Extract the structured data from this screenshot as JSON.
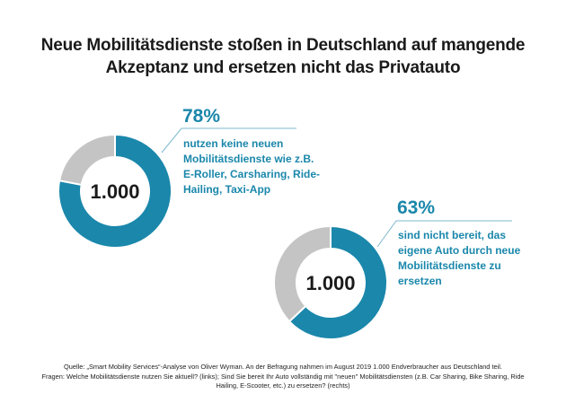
{
  "title": {
    "line1": "Neue Mobilitätsdienste stoßen in Deutschland auf mangende",
    "line2": "Akzeptanz und ersetzen nicht das Privatauto"
  },
  "colors": {
    "accent": "#1a87ab",
    "remainder": "#c4c4c4",
    "text": "#1a1a1a"
  },
  "chart_data": [
    {
      "type": "pie",
      "variant": "donut",
      "position": "left",
      "center_label": "1.000",
      "slices": [
        {
          "name": "nutzen keine neuen Mobilitätsdienste",
          "value": 78,
          "color": "#1a87ab"
        },
        {
          "name": "Rest",
          "value": 22,
          "color": "#c4c4c4"
        }
      ],
      "callout_value": "78%",
      "callout_text": [
        "nutzen keine neuen",
        "Mobilitätsdienste wie z.B.",
        "E-Roller, Carsharing, Ride-",
        "Hailing, Taxi-App"
      ]
    },
    {
      "type": "pie",
      "variant": "donut",
      "position": "right",
      "center_label": "1.000",
      "slices": [
        {
          "name": "sind nicht bereit, das eigene Auto zu ersetzen",
          "value": 63,
          "color": "#1a87ab"
        },
        {
          "name": "Rest",
          "value": 37,
          "color": "#c4c4c4"
        }
      ],
      "callout_value": "63%",
      "callout_text": [
        "sind nicht bereit, das",
        "eigene Auto durch neue",
        "Mobilitätsdienste zu",
        "ersetzen"
      ]
    }
  ],
  "footer": {
    "line1": "Quelle: „Smart Mobility Services“-Analyse von Oliver Wyman. An der Befragung nahmen im August 2019 1.000 Endverbraucher aus Deutschland teil.",
    "line2": "Fragen: Welche Mobilitätsdienste nutzen Sie aktuell? (links); Sind Sie bereit Ihr Auto vollständig mit \"neuen\" Mobilitätsdiensten (z.B. Car Sharing, Bike Sharing, Ride",
    "line3": "Hailing, E-Scooter, etc.) zu ersetzen? (rechts)"
  }
}
